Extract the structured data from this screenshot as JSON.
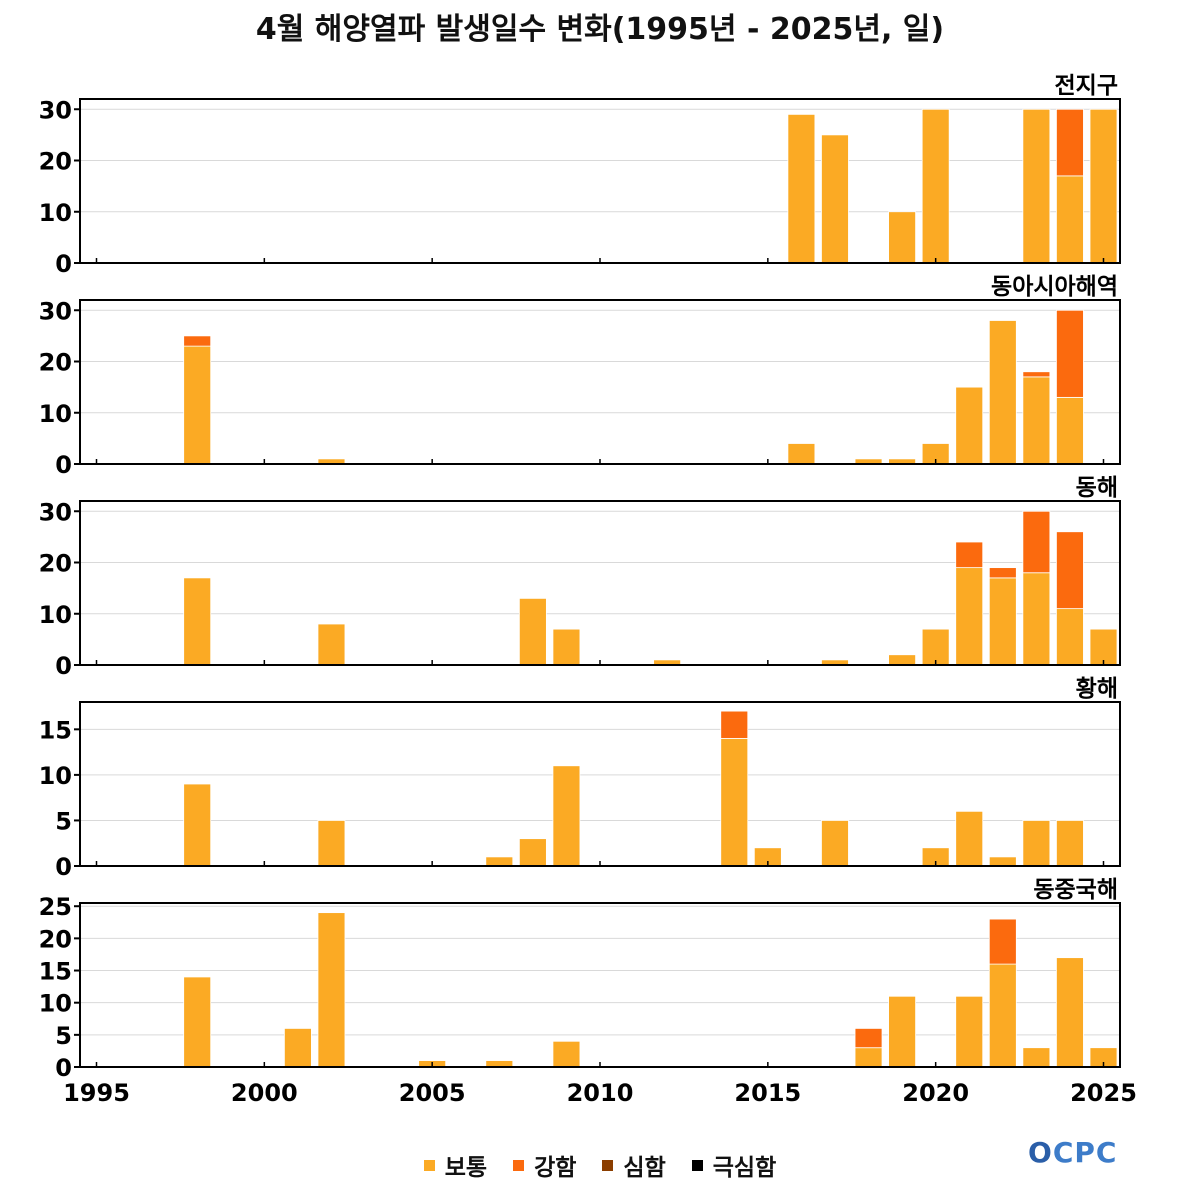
{
  "chart_data": {
    "type": "bar",
    "title": "4월 해양열파 발생일수 변화(1995년 - 2025년, 일)",
    "xlim": [
      1995,
      2025
    ],
    "xticks": [
      1995,
      2000,
      2005,
      2010,
      2015,
      2020,
      2025
    ],
    "stacked": true,
    "series_names": [
      "보통",
      "강함",
      "심함",
      "극심함"
    ],
    "colors": {
      "보통": "#FBAA24",
      "강함": "#FB6A0E",
      "심함": "#8B3E00",
      "극심함": "#000000"
    },
    "grid": true,
    "panels": [
      {
        "name": "전지구",
        "ylim": [
          0,
          32
        ],
        "yticks": [
          0,
          10,
          20,
          30
        ],
        "bars": [
          {
            "year": 2016,
            "보통": 29,
            "강함": 0
          },
          {
            "year": 2017,
            "보통": 25,
            "강함": 0
          },
          {
            "year": 2019,
            "보통": 10,
            "강함": 0
          },
          {
            "year": 2020,
            "보통": 30,
            "강함": 0
          },
          {
            "year": 2023,
            "보통": 30,
            "강함": 0
          },
          {
            "year": 2024,
            "보통": 17,
            "강함": 13
          },
          {
            "year": 2025,
            "보통": 30,
            "강함": 0
          }
        ]
      },
      {
        "name": "동아시아해역",
        "ylim": [
          0,
          32
        ],
        "yticks": [
          0,
          10,
          20,
          30
        ],
        "bars": [
          {
            "year": 1998,
            "보통": 23,
            "강함": 2
          },
          {
            "year": 2002,
            "보통": 1,
            "강함": 0
          },
          {
            "year": 2016,
            "보통": 4,
            "강함": 0
          },
          {
            "year": 2018,
            "보통": 1,
            "강함": 0
          },
          {
            "year": 2019,
            "보통": 1,
            "강함": 0
          },
          {
            "year": 2020,
            "보통": 4,
            "강함": 0
          },
          {
            "year": 2021,
            "보통": 15,
            "강함": 0
          },
          {
            "year": 2022,
            "보통": 28,
            "강함": 0
          },
          {
            "year": 2023,
            "보통": 17,
            "강함": 1
          },
          {
            "year": 2024,
            "보통": 13,
            "강함": 17
          }
        ]
      },
      {
        "name": "동해",
        "ylim": [
          0,
          32
        ],
        "yticks": [
          0,
          10,
          20,
          30
        ],
        "bars": [
          {
            "year": 1998,
            "보통": 17,
            "강함": 0
          },
          {
            "year": 2002,
            "보통": 8,
            "강함": 0
          },
          {
            "year": 2008,
            "보통": 13,
            "강함": 0
          },
          {
            "year": 2009,
            "보통": 7,
            "강함": 0
          },
          {
            "year": 2012,
            "보통": 1,
            "강함": 0
          },
          {
            "year": 2017,
            "보통": 1,
            "강함": 0
          },
          {
            "year": 2019,
            "보통": 2,
            "강함": 0
          },
          {
            "year": 2020,
            "보통": 7,
            "강함": 0
          },
          {
            "year": 2021,
            "보통": 19,
            "강함": 5
          },
          {
            "year": 2022,
            "보통": 17,
            "강함": 2
          },
          {
            "year": 2023,
            "보통": 18,
            "강함": 12
          },
          {
            "year": 2024,
            "보통": 11,
            "강함": 15
          },
          {
            "year": 2025,
            "보통": 7,
            "강함": 0
          }
        ]
      },
      {
        "name": "황해",
        "ylim": [
          0,
          18
        ],
        "yticks": [
          0,
          5,
          10,
          15
        ],
        "bars": [
          {
            "year": 1998,
            "보통": 9,
            "강함": 0
          },
          {
            "year": 2002,
            "보통": 5,
            "강함": 0
          },
          {
            "year": 2007,
            "보통": 1,
            "강함": 0
          },
          {
            "year": 2008,
            "보통": 3,
            "강함": 0
          },
          {
            "year": 2009,
            "보통": 11,
            "강함": 0
          },
          {
            "year": 2014,
            "보통": 14,
            "강함": 3
          },
          {
            "year": 2015,
            "보통": 2,
            "강함": 0
          },
          {
            "year": 2017,
            "보통": 5,
            "강함": 0
          },
          {
            "year": 2020,
            "보통": 2,
            "강함": 0
          },
          {
            "year": 2021,
            "보통": 6,
            "강함": 0
          },
          {
            "year": 2022,
            "보통": 1,
            "강함": 0
          },
          {
            "year": 2023,
            "보통": 5,
            "강함": 0
          },
          {
            "year": 2024,
            "보통": 5,
            "강함": 0
          }
        ]
      },
      {
        "name": "동중국해",
        "ylim": [
          0,
          25.5
        ],
        "yticks": [
          0,
          5,
          10,
          15,
          20,
          25
        ],
        "bars": [
          {
            "year": 1998,
            "보통": 14,
            "강함": 0
          },
          {
            "year": 2001,
            "보통": 6,
            "강함": 0
          },
          {
            "year": 2002,
            "보통": 24,
            "강함": 0
          },
          {
            "year": 2005,
            "보통": 1,
            "강함": 0
          },
          {
            "year": 2007,
            "보통": 1,
            "강함": 0
          },
          {
            "year": 2009,
            "보통": 4,
            "강함": 0
          },
          {
            "year": 2018,
            "보통": 3,
            "강함": 3
          },
          {
            "year": 2019,
            "보통": 11,
            "강함": 0
          },
          {
            "year": 2021,
            "보통": 11,
            "강함": 0
          },
          {
            "year": 2022,
            "보통": 16,
            "강함": 7
          },
          {
            "year": 2023,
            "보통": 3,
            "강함": 0
          },
          {
            "year": 2024,
            "보통": 17,
            "강함": 0
          },
          {
            "year": 2025,
            "보통": 3,
            "강함": 0
          }
        ]
      }
    ]
  },
  "legend": {
    "items": [
      {
        "label": "보통",
        "color": "#FBAA24"
      },
      {
        "label": "강함",
        "color": "#FB6A0E"
      },
      {
        "label": "심함",
        "color": "#8B3E00"
      },
      {
        "label": "극심함",
        "color": "#000000"
      }
    ]
  },
  "logo": {
    "text": "OCPC",
    "o_part": "O",
    "rest": "CPC"
  }
}
